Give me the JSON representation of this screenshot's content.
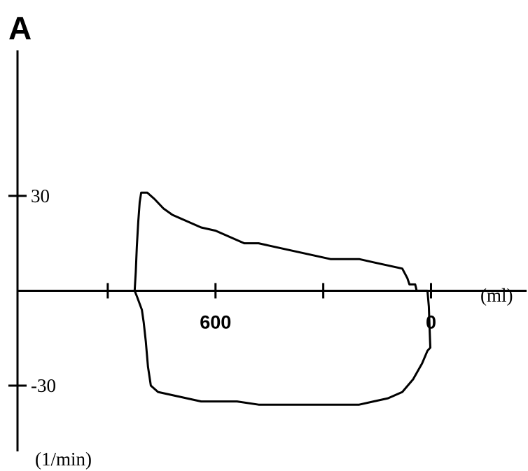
{
  "chart_data": {
    "type": "line",
    "panel_label": "A",
    "xlabel": "(ml)",
    "ylabel": "(1/min)",
    "x_ticks": [
      {
        "value": 900,
        "label": ""
      },
      {
        "value": 600,
        "label": "600"
      },
      {
        "value": 300,
        "label": ""
      },
      {
        "value": 0,
        "label": "0"
      }
    ],
    "y_ticks": [
      {
        "value": 30,
        "label": "30"
      },
      {
        "value": -30,
        "label": "-30"
      }
    ],
    "xlim": [
      1200,
      -270
    ],
    "ylim": [
      -53,
      72
    ],
    "x_reversed": true,
    "grid": false,
    "legend": "none",
    "series": [
      {
        "line_color": "#000000",
        "points": [
          [
            825,
            0
          ],
          [
            822,
            6
          ],
          [
            819,
            14
          ],
          [
            815,
            22
          ],
          [
            811,
            28
          ],
          [
            807,
            31
          ],
          [
            790,
            31
          ],
          [
            770,
            29
          ],
          [
            745,
            26
          ],
          [
            720,
            24
          ],
          [
            680,
            22
          ],
          [
            640,
            20
          ],
          [
            600,
            19
          ],
          [
            560,
            17
          ],
          [
            520,
            15
          ],
          [
            480,
            15
          ],
          [
            440,
            14
          ],
          [
            400,
            13
          ],
          [
            360,
            12
          ],
          [
            320,
            11
          ],
          [
            280,
            10
          ],
          [
            240,
            10
          ],
          [
            200,
            10
          ],
          [
            160,
            9
          ],
          [
            120,
            8
          ],
          [
            80,
            7
          ],
          [
            66,
            4
          ],
          [
            60,
            2
          ],
          [
            44,
            2
          ],
          [
            42,
            1
          ],
          [
            40,
            0
          ],
          [
            10,
            0
          ],
          [
            6,
            -5
          ],
          [
            4,
            -12
          ],
          [
            2,
            -18
          ],
          [
            10,
            -19
          ],
          [
            25,
            -23
          ],
          [
            50,
            -28
          ],
          [
            80,
            -32
          ],
          [
            120,
            -34
          ],
          [
            160,
            -35
          ],
          [
            200,
            -36
          ],
          [
            240,
            -36
          ],
          [
            300,
            -36
          ],
          [
            360,
            -36
          ],
          [
            420,
            -36
          ],
          [
            480,
            -36
          ],
          [
            540,
            -35
          ],
          [
            600,
            -35
          ],
          [
            640,
            -35
          ],
          [
            680,
            -34
          ],
          [
            720,
            -33
          ],
          [
            760,
            -32
          ],
          [
            780,
            -30
          ],
          [
            788,
            -24
          ],
          [
            794,
            -16
          ],
          [
            800,
            -10
          ],
          [
            805,
            -6
          ],
          [
            818,
            -2
          ],
          [
            825,
            0
          ]
        ]
      }
    ]
  }
}
